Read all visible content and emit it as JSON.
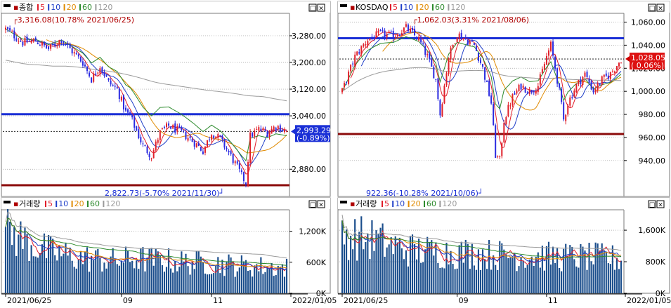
{
  "colors": {
    "up": "#e0202a",
    "down": "#2a2ae0",
    "ma5": "#e11d2a",
    "ma10": "#1f3ec8",
    "ma20": "#e08a00",
    "ma60": "#2c8a2c",
    "ma120": "#9a9a9a",
    "hline_blue": "#1a2fd6",
    "hline_red": "#8b0a0a",
    "volume": "#1b4e8c",
    "grid": "#a0a0a0"
  },
  "legend_ma": [
    "5",
    "10",
    "20",
    "60",
    "120"
  ],
  "window_buttons": [
    "□",
    "×"
  ],
  "chart_data": [
    {
      "type": "candlestick",
      "id": "kospi-price",
      "title": "종합",
      "y_ticks": [
        "3,280.00",
        "3,200.00",
        "3,120.00",
        "3,040.00",
        "2,880.00"
      ],
      "y_tick_values": [
        3280,
        3200,
        3120,
        3040,
        2880
      ],
      "ylim": [
        2830,
        3345
      ],
      "current_value": "2,993.29",
      "current_change": "(-0.89%)",
      "current": 2993.29,
      "hlines": [
        3045,
        2832
      ],
      "annot_high": "3,316.08(10.78% 2021/06/25)",
      "annot_low": "2,822.73(-5.70% 2021/11/30)",
      "high": 3316.08,
      "low": 2822.73,
      "n": 132,
      "anchors": [
        [
          0,
          3300
        ],
        [
          8,
          3260
        ],
        [
          14,
          3265
        ],
        [
          20,
          3240
        ],
        [
          26,
          3270
        ],
        [
          30,
          3240
        ],
        [
          36,
          3200
        ],
        [
          40,
          3150
        ],
        [
          44,
          3190
        ],
        [
          48,
          3140
        ],
        [
          52,
          3120
        ],
        [
          56,
          3050
        ],
        [
          58,
          3040
        ],
        [
          60,
          3010
        ],
        [
          64,
          2950
        ],
        [
          68,
          2920
        ],
        [
          72,
          2990
        ],
        [
          76,
          3010
        ],
        [
          82,
          2990
        ],
        [
          88,
          2960
        ],
        [
          92,
          2935
        ],
        [
          96,
          2990
        ],
        [
          100,
          2970
        ],
        [
          104,
          2930
        ],
        [
          108,
          2885
        ],
        [
          110,
          2860
        ],
        [
          112,
          2840
        ],
        [
          114,
          2980
        ],
        [
          118,
          3000
        ],
        [
          122,
          2990
        ],
        [
          126,
          3010
        ],
        [
          131,
          2993
        ]
      ]
    },
    {
      "type": "candlestick",
      "id": "kosdaq-price",
      "title": "KOSDAQ",
      "y_ticks": [
        "1,060.00",
        "1,040.00",
        "1,020.00",
        "1,000.00",
        "980.00",
        "960.00",
        "940.00"
      ],
      "y_tick_values": [
        1060,
        1040,
        1020,
        1000,
        980,
        960,
        940
      ],
      "ylim": [
        918,
        1067
      ],
      "current_value": "1,028.05",
      "current_change": "( 0.06%)",
      "current": 1028.05,
      "hlines": [
        1046,
        963
      ],
      "annot_high": "1,062.03(3.31% 2021/08/06)",
      "annot_low": "922.36(-10.28% 2021/10/06)",
      "high": 1062.03,
      "low": 922.36,
      "n": 132,
      "anchors": [
        [
          0,
          1000
        ],
        [
          6,
          1030
        ],
        [
          12,
          1045
        ],
        [
          18,
          1050
        ],
        [
          24,
          1048
        ],
        [
          30,
          1055
        ],
        [
          36,
          1045
        ],
        [
          40,
          1030
        ],
        [
          44,
          1010
        ],
        [
          46,
          980
        ],
        [
          50,
          1030
        ],
        [
          54,
          1050
        ],
        [
          58,
          1045
        ],
        [
          62,
          1040
        ],
        [
          66,
          1020
        ],
        [
          70,
          990
        ],
        [
          72,
          945
        ],
        [
          74,
          940
        ],
        [
          76,
          975
        ],
        [
          80,
          995
        ],
        [
          84,
          1005
        ],
        [
          88,
          1000
        ],
        [
          92,
          1005
        ],
        [
          96,
          1030
        ],
        [
          98,
          1040
        ],
        [
          100,
          1020
        ],
        [
          102,
          1000
        ],
        [
          104,
          975
        ],
        [
          106,
          990
        ],
        [
          110,
          1005
        ],
        [
          114,
          1015
        ],
        [
          118,
          1000
        ],
        [
          122,
          1010
        ],
        [
          126,
          1015
        ],
        [
          131,
          1028
        ]
      ]
    },
    {
      "type": "bar",
      "id": "kospi-volume",
      "title": "거래량",
      "y_ticks": [
        "1,200K",
        "600K",
        "0K"
      ],
      "y_tick_values": [
        1200,
        600,
        0
      ],
      "ylim": [
        0,
        1600
      ],
      "n": 132,
      "anchors": [
        [
          0,
          1250
        ],
        [
          6,
          1150
        ],
        [
          12,
          1000
        ],
        [
          20,
          850
        ],
        [
          30,
          750
        ],
        [
          40,
          700
        ],
        [
          50,
          660
        ],
        [
          60,
          700
        ],
        [
          70,
          680
        ],
        [
          80,
          640
        ],
        [
          90,
          620
        ],
        [
          100,
          600
        ],
        [
          110,
          560
        ],
        [
          120,
          540
        ],
        [
          131,
          520
        ]
      ]
    },
    {
      "type": "bar",
      "id": "kosdaq-volume",
      "title": "거래량",
      "y_ticks": [
        "1,600K",
        "800K",
        "0K"
      ],
      "y_tick_values": [
        1600,
        800,
        0
      ],
      "ylim": [
        0,
        2100
      ],
      "n": 132,
      "anchors": [
        [
          0,
          1550
        ],
        [
          8,
          1480
        ],
        [
          16,
          1420
        ],
        [
          24,
          1250
        ],
        [
          34,
          1150
        ],
        [
          44,
          1100
        ],
        [
          54,
          1080
        ],
        [
          64,
          1050
        ],
        [
          74,
          1020
        ],
        [
          84,
          1000
        ],
        [
          94,
          980
        ],
        [
          104,
          970
        ],
        [
          114,
          960
        ],
        [
          124,
          950
        ],
        [
          131,
          900
        ]
      ]
    }
  ],
  "x_axis": {
    "labels": [
      "2021/06/25",
      "09",
      "11",
      "2022/01/05"
    ],
    "positions": [
      0,
      54,
      96,
      132
    ]
  }
}
